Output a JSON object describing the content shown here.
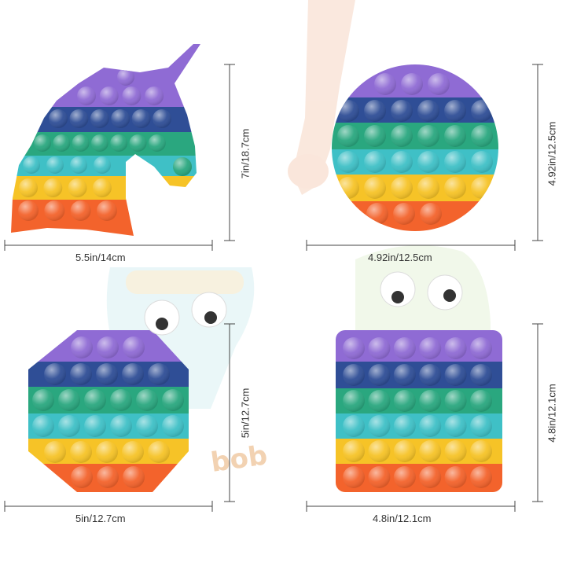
{
  "palette": {
    "purple": "#8f6bd4",
    "navy": "#2f4e96",
    "green": "#2aa77f",
    "teal": "#3fc0c6",
    "yellow": "#f6c327",
    "orange": "#f3632c",
    "line": "#444444"
  },
  "toys": [
    {
      "name": "unicorn",
      "width_label": "5.5in/14cm",
      "height_label": "7in/18.7cm"
    },
    {
      "name": "circle",
      "width_label": "4.92in/12.5cm",
      "height_label": "4.92in/12.5cm"
    },
    {
      "name": "octagon",
      "width_label": "5in/12.7cm",
      "height_label": "5in/12.7cm"
    },
    {
      "name": "square",
      "width_label": "4.8in/12.1cm",
      "height_label": "4.8in/12.1cm"
    }
  ],
  "watermark": "bob"
}
